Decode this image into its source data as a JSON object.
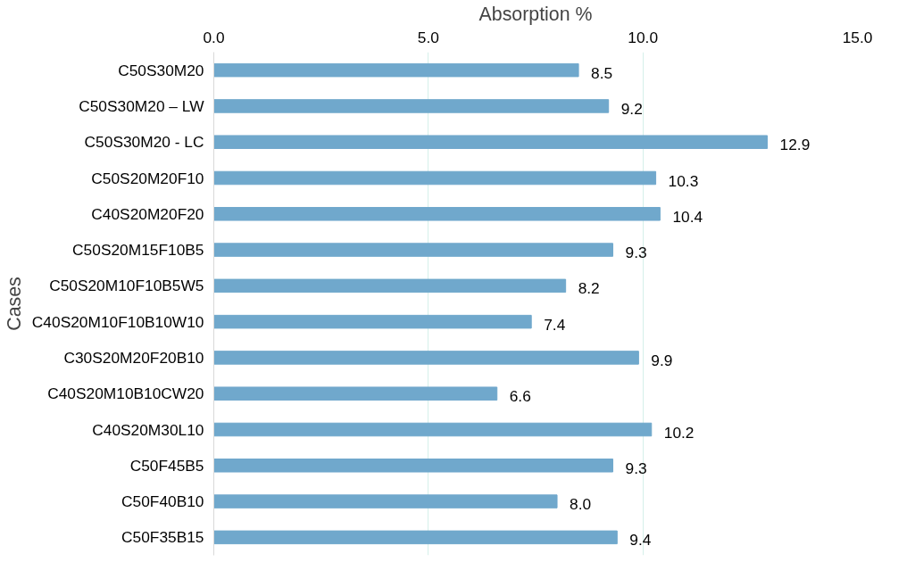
{
  "chart_data": {
    "type": "bar",
    "orientation": "horizontal",
    "xlabel": "Absorption %",
    "ylabel": "Cases",
    "categories": [
      "C50S30M20",
      "C50S30M20 – LW",
      "C50S30M20 - LC",
      "C50S20M20F10",
      "C40S20M20F20",
      "C50S20M15F10B5",
      "C50S20M10F10B5W5",
      "C40S20M10F10B10W10",
      "C30S20M20F20B10",
      "C40S20M10B10CW20",
      "C40S20M30L10",
      "C50F45B5",
      "C50F40B10",
      "C50F35B15"
    ],
    "values": [
      8.5,
      9.2,
      12.9,
      10.3,
      10.4,
      9.3,
      8.2,
      7.4,
      9.9,
      6.6,
      10.2,
      9.3,
      8.0,
      9.4
    ],
    "value_labels": [
      "8.5",
      "9.2",
      "12.9",
      "10.3",
      "10.4",
      "9.3",
      "8.2",
      "7.4",
      "9.9",
      "6.6",
      "10.2",
      "9.3",
      "8.0",
      "9.4"
    ],
    "color": "#70a8cc",
    "xlim": [
      0,
      15
    ],
    "xticks": [
      {
        "value": 0,
        "label": "0.0"
      },
      {
        "value": 5,
        "label": "5.0"
      },
      {
        "value": 10,
        "label": "10.0"
      },
      {
        "value": 15,
        "label": "15.0"
      }
    ],
    "grid": "x"
  }
}
